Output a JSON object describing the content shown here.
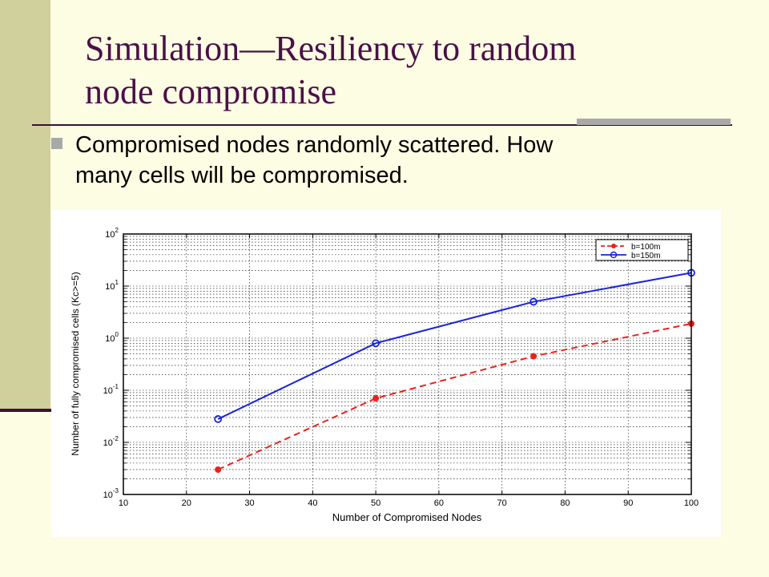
{
  "slide": {
    "title_line1": "Simulation—Resiliency to random",
    "title_line2": "node compromise",
    "bullet_line1": "Compromised nodes randomly scattered. How",
    "bullet_line2": "many cells will be compromised."
  },
  "colors": {
    "title": "#4a1049",
    "side_band": "#d0d09d",
    "accent_rule": "#3f1035",
    "series_b100": "#e8231c",
    "series_b150": "#1a25d6"
  },
  "chart_data": {
    "type": "line",
    "xlabel": "Number of Compromised Nodes",
    "ylabel": "Number of fully compromised cells (Kc>=5)",
    "xlim": [
      10,
      100
    ],
    "ylim": [
      0.001,
      100
    ],
    "yscale": "log",
    "grid": true,
    "legend_position": "top-right",
    "x_ticks": [
      10,
      20,
      30,
      40,
      50,
      60,
      70,
      80,
      90,
      100
    ],
    "y_ticks": [
      {
        "value": 0.001,
        "base": "10",
        "exp": "-3"
      },
      {
        "value": 0.01,
        "base": "10",
        "exp": "-2"
      },
      {
        "value": 0.1,
        "base": "10",
        "exp": "-1"
      },
      {
        "value": 1,
        "base": "10",
        "exp": "0"
      },
      {
        "value": 10,
        "base": "10",
        "exp": "1"
      },
      {
        "value": 100,
        "base": "10",
        "exp": "2"
      }
    ],
    "x": [
      25,
      50,
      75,
      100
    ],
    "series": [
      {
        "name": "b=100m",
        "values": [
          0.003,
          0.07,
          0.45,
          1.9
        ],
        "color": "#e8231c",
        "dash": "dashed",
        "marker": "asterisk"
      },
      {
        "name": "b=150m",
        "values": [
          0.028,
          0.8,
          5.0,
          18.0
        ],
        "color": "#1a25d6",
        "dash": "solid",
        "marker": "circle"
      }
    ]
  }
}
